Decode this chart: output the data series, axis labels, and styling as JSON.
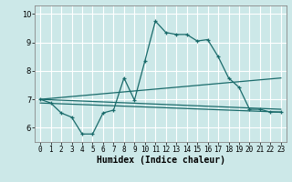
{
  "title": "",
  "xlabel": "Humidex (Indice chaleur)",
  "bg_color": "#cce8e8",
  "grid_color": "#ffffff",
  "line_color": "#1a6b6b",
  "xlim": [
    -0.5,
    23.5
  ],
  "ylim": [
    5.5,
    10.3
  ],
  "yticks": [
    6,
    7,
    8,
    9,
    10
  ],
  "xticks": [
    0,
    1,
    2,
    3,
    4,
    5,
    6,
    7,
    8,
    9,
    10,
    11,
    12,
    13,
    14,
    15,
    16,
    17,
    18,
    19,
    20,
    21,
    22,
    23
  ],
  "series1_x": [
    0,
    1,
    2,
    3,
    4,
    5,
    6,
    7,
    8,
    9,
    10,
    11,
    12,
    13,
    14,
    15,
    16,
    17,
    18,
    19,
    20,
    21,
    22,
    23
  ],
  "series1_y": [
    7.0,
    6.87,
    6.52,
    6.37,
    5.78,
    5.78,
    6.52,
    6.62,
    7.75,
    6.97,
    8.35,
    9.75,
    9.35,
    9.28,
    9.28,
    9.05,
    9.1,
    8.5,
    7.75,
    7.42,
    6.65,
    6.65,
    6.55,
    6.55
  ],
  "series2_x": [
    0,
    23
  ],
  "series2_y": [
    6.87,
    6.55
  ],
  "series3_x": [
    0,
    23
  ],
  "series3_y": [
    7.0,
    7.75
  ],
  "series4_x": [
    0,
    23
  ],
  "series4_y": [
    7.0,
    6.65
  ]
}
